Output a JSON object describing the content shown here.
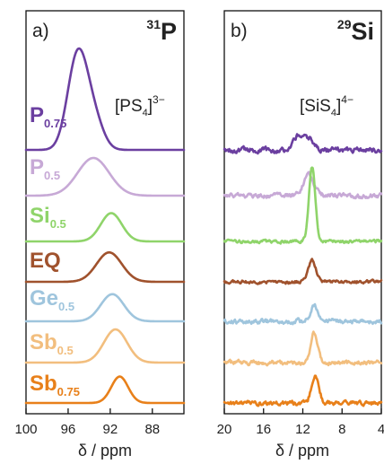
{
  "chart_data": [
    {
      "type": "line",
      "panel_label": "a)",
      "nucleus": {
        "mass": "31",
        "symbol": "P"
      },
      "species": {
        "bracket_open": "[",
        "formula": "PS",
        "subscript": "4",
        "bracket_close": "]",
        "charge": "3−"
      },
      "xlabel": "δ / ppm",
      "xlim": [
        100,
        85
      ],
      "x_reversed": true,
      "x_ticks": [
        "100",
        "96",
        "92",
        "88"
      ],
      "y_axis_shown": false,
      "grid": false,
      "legend": "labels-left-of-traces",
      "series": [
        {
          "name": "P",
          "subscript": "0.75",
          "color": "#6b3fa0",
          "peaks": [
            {
              "center": 95.3,
              "height": 1.6,
              "width": 0.9
            },
            {
              "center": 94.5,
              "height": 1.3,
              "width": 1.0
            },
            {
              "center": 93.2,
              "height": 0.35,
              "width": 0.8
            }
          ]
        },
        {
          "name": "P",
          "subscript": "0.5",
          "color": "#c7a9d6",
          "peaks": [
            {
              "center": 93.6,
              "height": 1.0,
              "width": 1.5
            }
          ]
        },
        {
          "name": "Si",
          "subscript": "0.5",
          "color": "#8fd46a",
          "peaks": [
            {
              "center": 91.9,
              "height": 0.75,
              "width": 1.0
            }
          ]
        },
        {
          "name": "EQ",
          "subscript": "",
          "color": "#a0522d",
          "peaks": [
            {
              "center": 92.1,
              "height": 0.78,
              "width": 1.2
            }
          ]
        },
        {
          "name": "Ge",
          "subscript": "0.5",
          "color": "#9fc5dd",
          "peaks": [
            {
              "center": 91.8,
              "height": 0.72,
              "width": 1.1
            }
          ]
        },
        {
          "name": "Sb",
          "subscript": "0.5",
          "color": "#f2be7e",
          "peaks": [
            {
              "center": 91.5,
              "height": 0.88,
              "width": 1.1
            }
          ]
        },
        {
          "name": "Sb",
          "subscript": "0.75",
          "color": "#e8801a",
          "peaks": [
            {
              "center": 91.1,
              "height": 0.7,
              "width": 0.8
            }
          ]
        }
      ]
    },
    {
      "type": "line",
      "panel_label": "b)",
      "nucleus": {
        "mass": "29",
        "symbol": "Si"
      },
      "species": {
        "bracket_open": "[",
        "formula": "SiS",
        "subscript": "4",
        "bracket_close": "]",
        "charge": "4−"
      },
      "xlabel": "δ / ppm",
      "xlim": [
        20,
        4
      ],
      "x_reversed": true,
      "x_ticks": [
        "20",
        "16",
        "12",
        "8",
        "4"
      ],
      "y_axis_shown": false,
      "grid": false,
      "series": [
        {
          "name": "P",
          "subscript": "0.75",
          "color": "#6b3fa0",
          "noise": 0.1,
          "peaks": [
            {
              "center": 12.3,
              "height": 0.55,
              "width": 0.55
            },
            {
              "center": 11.2,
              "height": 0.3,
              "width": 0.45
            }
          ]
        },
        {
          "name": "P",
          "subscript": "0.5",
          "color": "#c7a9d6",
          "noise": 0.09,
          "peaks": [
            {
              "center": 11.4,
              "height": 0.7,
              "width": 0.55
            }
          ]
        },
        {
          "name": "Si",
          "subscript": "0.5",
          "color": "#8fd46a",
          "noise": 0.06,
          "peaks": [
            {
              "center": 11.05,
              "height": 2.6,
              "width": 0.32
            }
          ]
        },
        {
          "name": "EQ",
          "subscript": "",
          "color": "#a0522d",
          "noise": 0.06,
          "peaks": [
            {
              "center": 11.05,
              "height": 0.75,
              "width": 0.4
            }
          ]
        },
        {
          "name": "Ge",
          "subscript": "0.5",
          "color": "#9fc5dd",
          "noise": 0.09,
          "peaks": [
            {
              "center": 10.85,
              "height": 0.6,
              "width": 0.35
            }
          ]
        },
        {
          "name": "Sb",
          "subscript": "0.5",
          "color": "#f2be7e",
          "noise": 0.08,
          "peaks": [
            {
              "center": 10.85,
              "height": 1.05,
              "width": 0.35
            }
          ]
        },
        {
          "name": "Sb",
          "subscript": "0.75",
          "color": "#e8801a",
          "noise": 0.08,
          "peaks": [
            {
              "center": 10.75,
              "height": 0.9,
              "width": 0.38
            }
          ]
        }
      ]
    }
  ]
}
